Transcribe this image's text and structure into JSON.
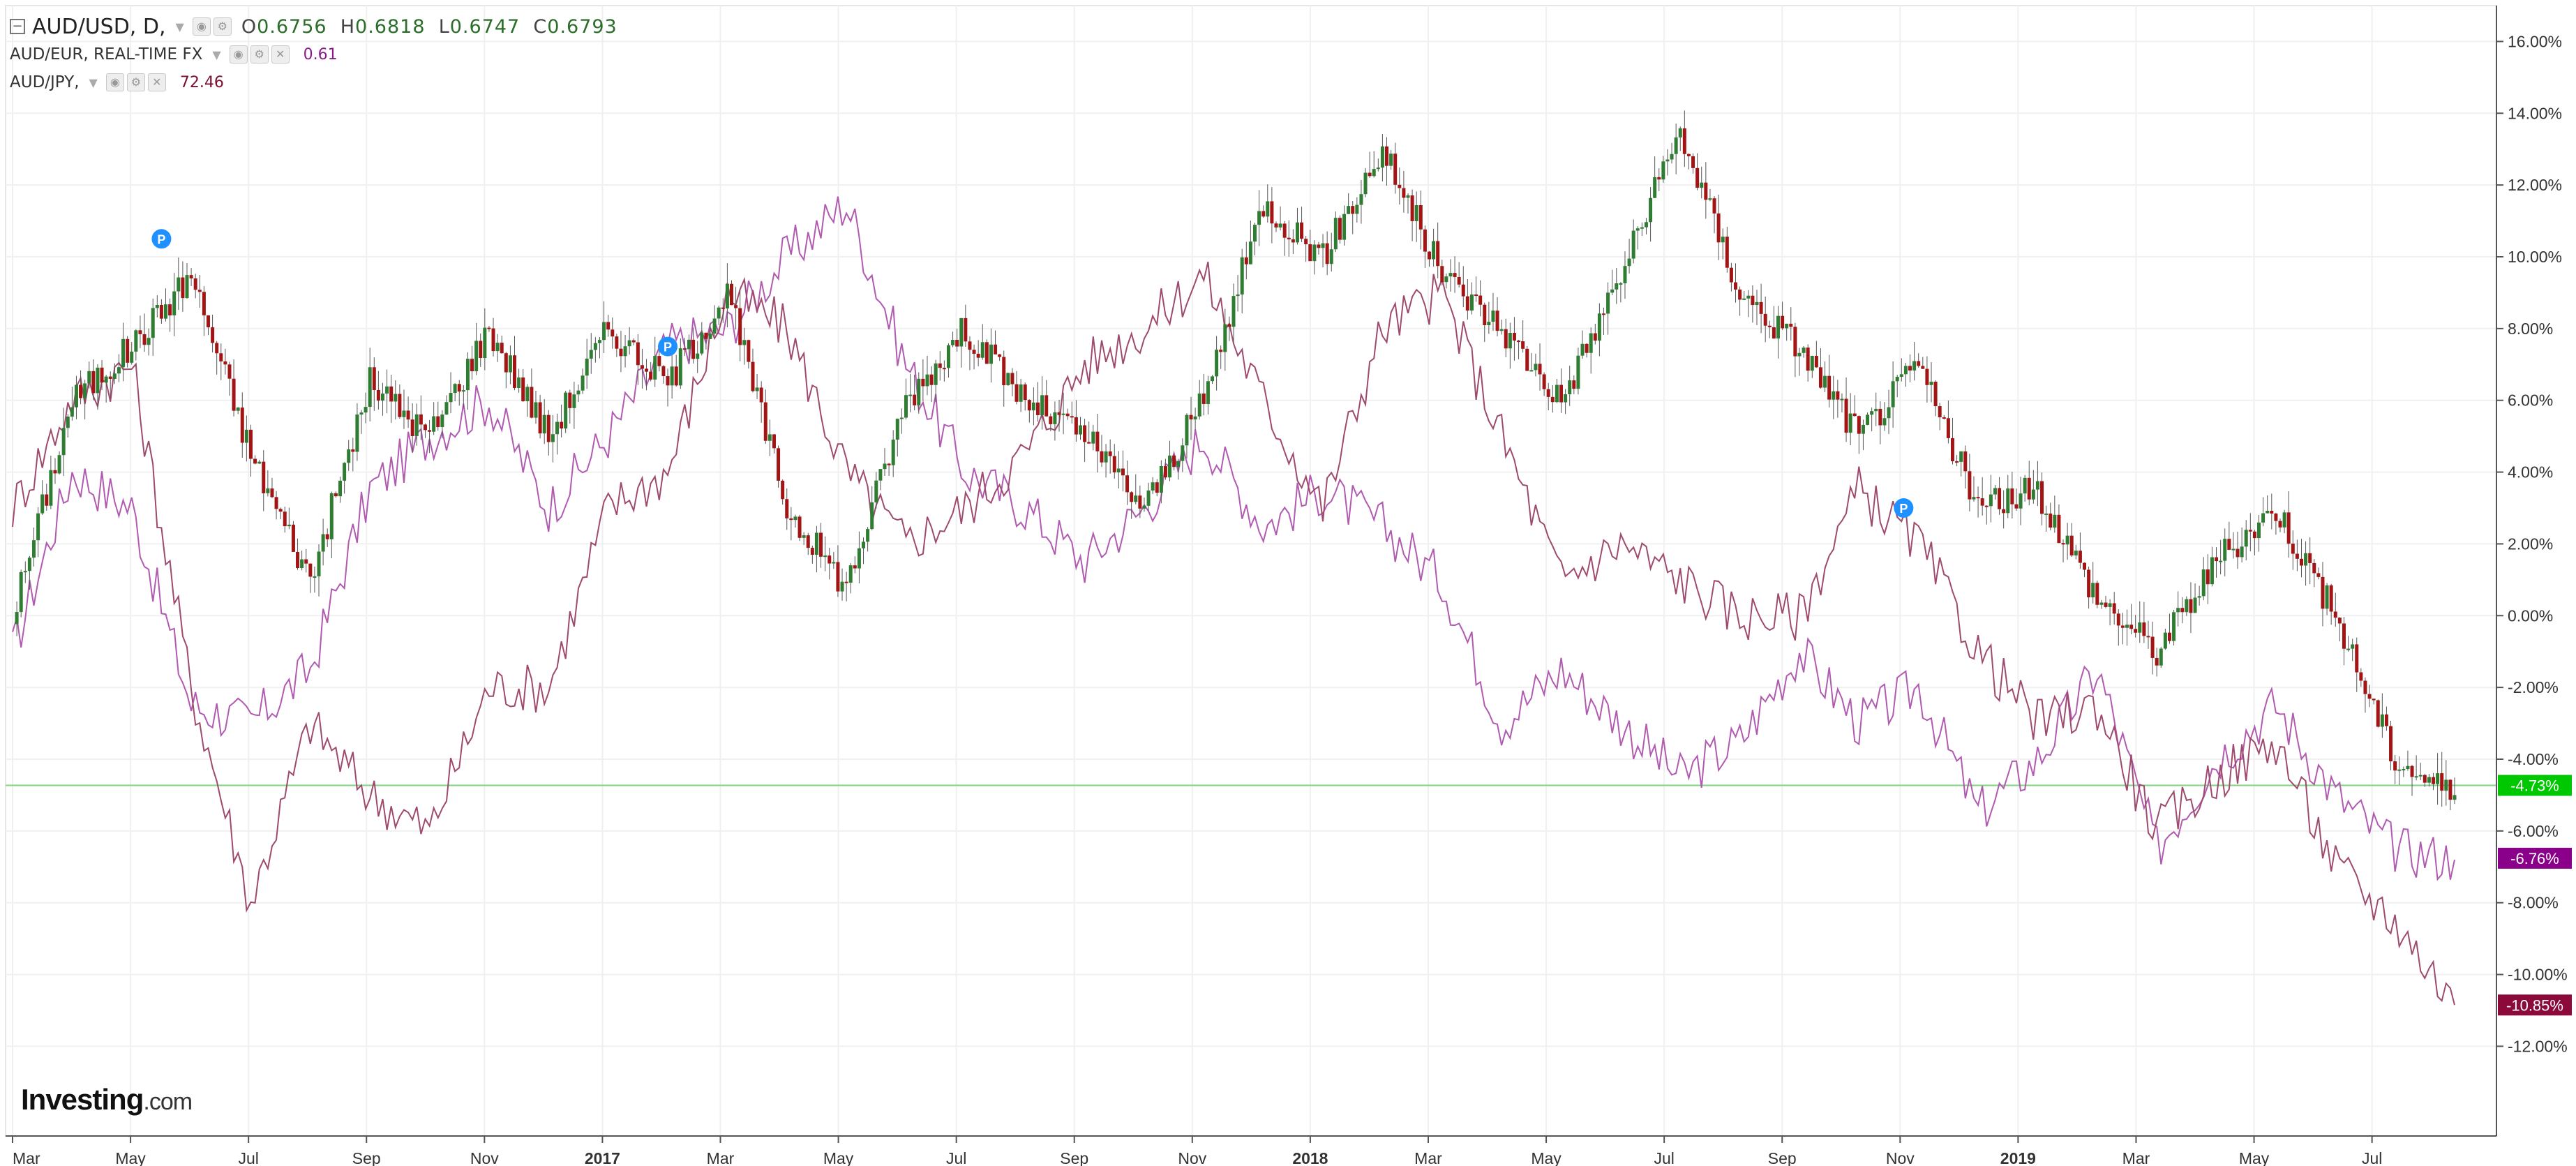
{
  "legend": {
    "main_symbol": "AUD/USD, D,",
    "ohlc": {
      "o_label": "O",
      "o": "0.6756",
      "h_label": "H",
      "h": "0.6818",
      "l_label": "L",
      "l": "0.6747",
      "c_label": "C",
      "c": "0.6793"
    },
    "eur_symbol": "AUD/EUR, REAL-TIME FX",
    "eur_value": "0.61",
    "jpy_symbol": "AUD/JPY,",
    "jpy_value": "72.46"
  },
  "logo": {
    "brand": "Investing",
    "suffix": ".com"
  },
  "colors": {
    "up": "#2e7d32",
    "down": "#a31515",
    "wick": "#555555",
    "eur": "#b05ab0",
    "jpy": "#9e4a6e",
    "current_line": "#7ed37e",
    "eur_badge": "#8b008b",
    "usd_badge": "#00c800",
    "jpy_badge": "#8b0a3a",
    "grid": "#f0f0f0",
    "axis": "#555555",
    "marker": "#1e90ff"
  },
  "markers": [
    "P",
    "P",
    "P"
  ],
  "chart_data": {
    "type": "line",
    "y_axis": {
      "ticks": [
        "16.00%",
        "14.00%",
        "12.00%",
        "10.00%",
        "8.00%",
        "6.00%",
        "4.00%",
        "2.00%",
        "0.00%",
        "-2.00%",
        "-4.00%",
        "-6.00%",
        "-8.00%",
        "-10.00%",
        "-12.00%"
      ],
      "ylim": [
        -14.5,
        17.0
      ],
      "unit": "%"
    },
    "x_axis": {
      "ticks": [
        "Mar",
        "May",
        "Jul",
        "Sep",
        "Nov",
        "2017",
        "Mar",
        "May",
        "Jul",
        "Sep",
        "Nov",
        "2018",
        "Mar",
        "May",
        "Jul",
        "Sep",
        "Nov",
        "2019",
        "Mar",
        "May",
        "Jul"
      ],
      "bold_ticks": [
        "2017",
        "2018",
        "2019"
      ]
    },
    "current_values": [
      {
        "series": "AUD/USD",
        "label": "-4.73%",
        "value": -4.73
      },
      {
        "series": "AUD/EUR",
        "label": "-6.76%",
        "value": -6.76
      },
      {
        "series": "AUD/JPY",
        "label": "-10.85%",
        "value": -10.85
      }
    ],
    "series": [
      {
        "name": "AUD/USD",
        "style": "candlestick",
        "x": [
          0,
          2,
          4,
          6,
          8,
          10,
          12,
          14,
          16,
          18,
          20,
          22,
          24,
          26,
          28,
          30,
          32,
          34,
          36,
          38,
          40,
          42,
          44,
          46,
          48,
          50,
          52,
          54,
          56,
          58,
          60,
          62,
          64,
          66,
          68,
          70,
          72,
          74,
          76,
          78,
          80,
          82
        ],
        "values": [
          0.0,
          6.0,
          7.5,
          9.5,
          4.5,
          1.0,
          6.5,
          5.0,
          8.0,
          5.0,
          8.0,
          6.5,
          9.0,
          3.0,
          0.8,
          6.0,
          8.0,
          6.0,
          5.0,
          3.0,
          6.0,
          11.5,
          10.0,
          13.0,
          9.5,
          8.0,
          6.0,
          9.5,
          13.5,
          9.0,
          7.5,
          5.0,
          7.0,
          3.0,
          3.5,
          0.5,
          -1.0,
          1.5,
          3.0,
          0.0,
          -4.0,
          -5.0
        ]
      },
      {
        "name": "AUD/EUR",
        "style": "line",
        "x": [
          0,
          2,
          4,
          6,
          8,
          10,
          12,
          14,
          16,
          18,
          20,
          22,
          24,
          26,
          28,
          30,
          32,
          34,
          36,
          38,
          40,
          42,
          44,
          46,
          48,
          50,
          52,
          54,
          56,
          58,
          60,
          62,
          64,
          66,
          68,
          70,
          72,
          74,
          76,
          78,
          80,
          82
        ],
        "values": [
          -1.0,
          4.0,
          3.0,
          -2.5,
          -3.0,
          -1.5,
          3.5,
          5.0,
          6.0,
          3.0,
          5.0,
          7.5,
          8.0,
          10.0,
          11.5,
          7.0,
          4.0,
          3.0,
          1.5,
          3.0,
          5.0,
          2.5,
          3.5,
          2.5,
          1.0,
          -3.0,
          -1.5,
          -3.0,
          -4.5,
          -3.5,
          -1.0,
          -3.0,
          -2.0,
          -5.5,
          -4.0,
          -1.5,
          -6.5,
          -4.0,
          -2.5,
          -5.0,
          -6.5,
          -6.8
        ]
      },
      {
        "name": "AUD/JPY",
        "style": "line",
        "x": [
          0,
          2,
          4,
          6,
          8,
          10,
          12,
          14,
          16,
          18,
          20,
          22,
          24,
          26,
          28,
          30,
          32,
          34,
          36,
          38,
          40,
          42,
          44,
          46,
          48,
          50,
          52,
          54,
          56,
          58,
          60,
          62,
          64,
          66,
          68,
          70,
          72,
          74,
          76,
          78,
          80,
          82
        ],
        "values": [
          3.0,
          6.0,
          7.0,
          -2.0,
          -8.0,
          -3.0,
          -5.0,
          -6.0,
          -2.0,
          -2.0,
          3.0,
          4.0,
          9.0,
          8.0,
          4.0,
          2.0,
          3.0,
          4.5,
          7.0,
          8.0,
          9.5,
          6.0,
          3.0,
          8.0,
          9.0,
          5.0,
          1.0,
          2.0,
          1.0,
          0.0,
          0.0,
          3.5,
          2.0,
          -1.0,
          -3.0,
          -2.5,
          -6.0,
          -4.5,
          -3.5,
          -7.0,
          -8.5,
          -10.85
        ]
      }
    ]
  }
}
